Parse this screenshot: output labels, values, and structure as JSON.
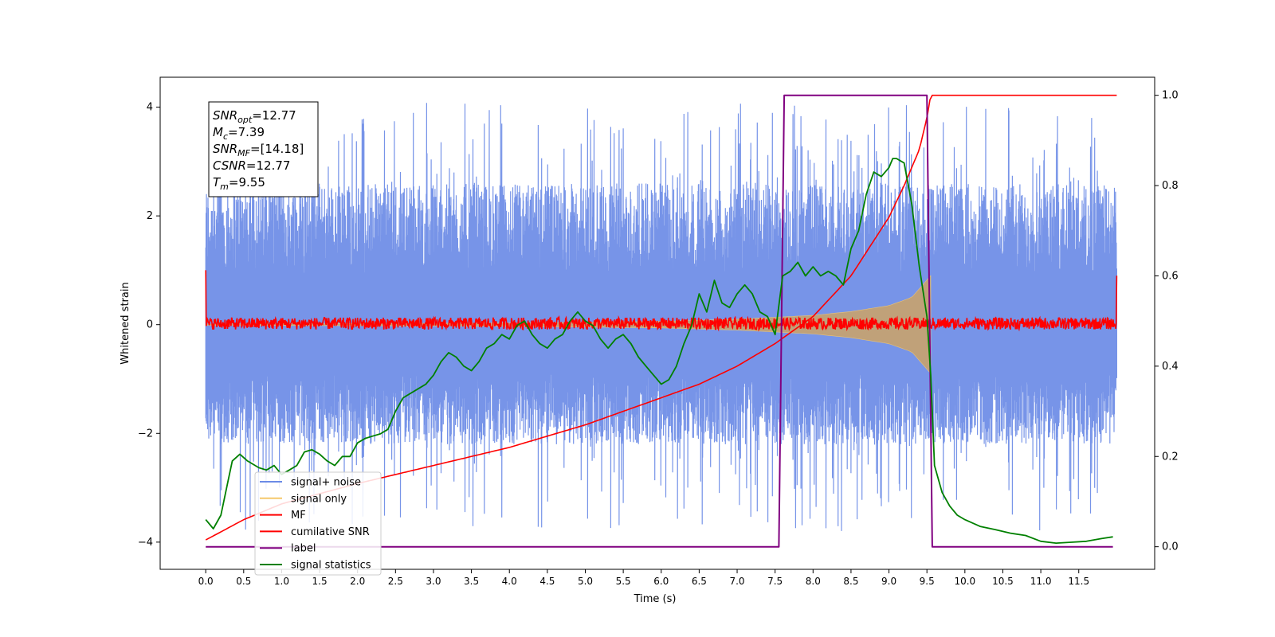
{
  "chart_data": {
    "type": "line",
    "xlabel": "Time (s)",
    "ylabel": "Whitened strain",
    "ylabel_right": "",
    "xlim": [
      -0.6,
      12.5
    ],
    "ylim": [
      -4.5,
      4.55
    ],
    "ylim_right": [
      -0.05,
      1.04
    ],
    "x_ticks": [
      "0.0",
      "0.5",
      "1.0",
      "1.5",
      "2.0",
      "2.5",
      "3.0",
      "3.5",
      "4.0",
      "4.5",
      "5.0",
      "5.5",
      "6.0",
      "6.5",
      "7.0",
      "7.5",
      "8.0",
      "8.5",
      "9.0",
      "9.5",
      "10.0",
      "10.5",
      "11.0",
      "11.5"
    ],
    "y_ticks_left": [
      "4",
      "2",
      "0",
      "−2",
      "−4"
    ],
    "y_ticks_right": [
      "1.0",
      "0.8",
      "0.6",
      "0.4",
      "0.2",
      "0.0"
    ],
    "grid": false,
    "legend_position": "lower-left",
    "info_box": {
      "lines": [
        {
          "name": "SNR",
          "sub": "opt",
          "value": "=12.77"
        },
        {
          "name": "M",
          "sub": "c",
          "value": "=7.39"
        },
        {
          "name": "SNR",
          "sub": "MF",
          "value": "=[14.18]"
        },
        {
          "name": "CSNR",
          "sub": "",
          "value": "=12.77"
        },
        {
          "name": "T",
          "sub": "m",
          "value": "=9.55"
        }
      ]
    },
    "series": [
      {
        "name": "signal+ noise",
        "color": "#6b8be6",
        "axis": "left",
        "kind": "noise-band",
        "x_range": [
          0.0,
          12.0
        ],
        "envelope": {
          "upper": 2.6,
          "lower": -2.2,
          "peak_upper": 4.1,
          "peak_lower": -3.8
        }
      },
      {
        "name": "signal only",
        "color": "#f5c86b",
        "axis": "left",
        "kind": "chirp",
        "x_range": [
          0.0,
          9.55
        ],
        "amplitude": {
          "t": [
            0.0,
            4.0,
            6.0,
            7.0,
            8.0,
            8.5,
            9.0,
            9.3,
            9.55
          ],
          "a": [
            0.01,
            0.03,
            0.06,
            0.1,
            0.17,
            0.24,
            0.35,
            0.5,
            0.9
          ]
        }
      },
      {
        "name": "MF",
        "color": "#ff0000",
        "axis": "left",
        "kind": "noise-band",
        "x_range": [
          0.0,
          12.0
        ],
        "envelope": {
          "upper": 0.15,
          "lower": -0.1,
          "start_value": 1.0,
          "end_value": 0.9
        }
      },
      {
        "name": "cumilative SNR",
        "color": "#ff0000",
        "axis": "right",
        "x": [
          0.0,
          0.5,
          1.0,
          2.0,
          3.0,
          4.0,
          5.0,
          6.0,
          6.5,
          7.0,
          7.5,
          8.0,
          8.5,
          9.0,
          9.2,
          9.4,
          9.5,
          9.55,
          12.0
        ],
        "y": [
          0.015,
          0.06,
          0.095,
          0.14,
          0.18,
          0.22,
          0.27,
          0.33,
          0.36,
          0.4,
          0.45,
          0.51,
          0.6,
          0.73,
          0.8,
          0.88,
          0.95,
          1.0,
          1.0
        ]
      },
      {
        "name": "label",
        "color": "#800080",
        "axis": "right",
        "x": [
          0.0,
          7.55,
          7.62,
          9.5,
          9.57,
          11.95
        ],
        "y": [
          0.0,
          0.0,
          1.0,
          1.0,
          0.0,
          0.0
        ]
      },
      {
        "name": "signal statistics",
        "color": "#008000",
        "axis": "right",
        "x": [
          0.0,
          0.1,
          0.2,
          0.3,
          0.35,
          0.45,
          0.55,
          0.7,
          0.8,
          0.9,
          1.0,
          1.1,
          1.2,
          1.3,
          1.4,
          1.5,
          1.6,
          1.7,
          1.8,
          1.9,
          2.0,
          2.1,
          2.2,
          2.3,
          2.4,
          2.5,
          2.6,
          2.7,
          2.8,
          2.9,
          3.0,
          3.1,
          3.2,
          3.3,
          3.4,
          3.5,
          3.6,
          3.7,
          3.8,
          3.9,
          4.0,
          4.1,
          4.2,
          4.3,
          4.4,
          4.5,
          4.6,
          4.7,
          4.8,
          4.9,
          5.0,
          5.1,
          5.2,
          5.3,
          5.4,
          5.5,
          5.6,
          5.7,
          5.8,
          5.9,
          6.0,
          6.1,
          6.2,
          6.3,
          6.4,
          6.5,
          6.6,
          6.7,
          6.8,
          6.9,
          7.0,
          7.1,
          7.2,
          7.3,
          7.4,
          7.5,
          7.6,
          7.7,
          7.8,
          7.9,
          8.0,
          8.1,
          8.2,
          8.3,
          8.4,
          8.5,
          8.6,
          8.7,
          8.8,
          8.9,
          9.0,
          9.05,
          9.1,
          9.2,
          9.3,
          9.4,
          9.5,
          9.55,
          9.6,
          9.7,
          9.8,
          9.9,
          10.0,
          10.2,
          10.4,
          10.6,
          10.8,
          11.0,
          11.2,
          11.4,
          11.6,
          11.8,
          11.95
        ],
        "y": [
          0.06,
          0.04,
          0.07,
          0.15,
          0.19,
          0.205,
          0.19,
          0.175,
          0.17,
          0.18,
          0.16,
          0.17,
          0.18,
          0.21,
          0.215,
          0.205,
          0.19,
          0.18,
          0.2,
          0.2,
          0.23,
          0.24,
          0.245,
          0.25,
          0.26,
          0.3,
          0.33,
          0.34,
          0.35,
          0.36,
          0.38,
          0.41,
          0.43,
          0.42,
          0.4,
          0.39,
          0.41,
          0.44,
          0.45,
          0.47,
          0.46,
          0.49,
          0.5,
          0.47,
          0.45,
          0.44,
          0.46,
          0.47,
          0.5,
          0.52,
          0.5,
          0.49,
          0.46,
          0.44,
          0.46,
          0.47,
          0.45,
          0.42,
          0.4,
          0.38,
          0.36,
          0.37,
          0.4,
          0.45,
          0.49,
          0.56,
          0.52,
          0.59,
          0.54,
          0.53,
          0.56,
          0.58,
          0.56,
          0.52,
          0.51,
          0.47,
          0.6,
          0.61,
          0.63,
          0.6,
          0.62,
          0.6,
          0.61,
          0.6,
          0.58,
          0.66,
          0.7,
          0.78,
          0.83,
          0.82,
          0.84,
          0.86,
          0.86,
          0.85,
          0.76,
          0.62,
          0.51,
          0.38,
          0.18,
          0.12,
          0.09,
          0.07,
          0.06,
          0.045,
          0.038,
          0.03,
          0.025,
          0.012,
          0.008,
          0.01,
          0.012,
          0.018,
          0.022
        ]
      }
    ]
  }
}
